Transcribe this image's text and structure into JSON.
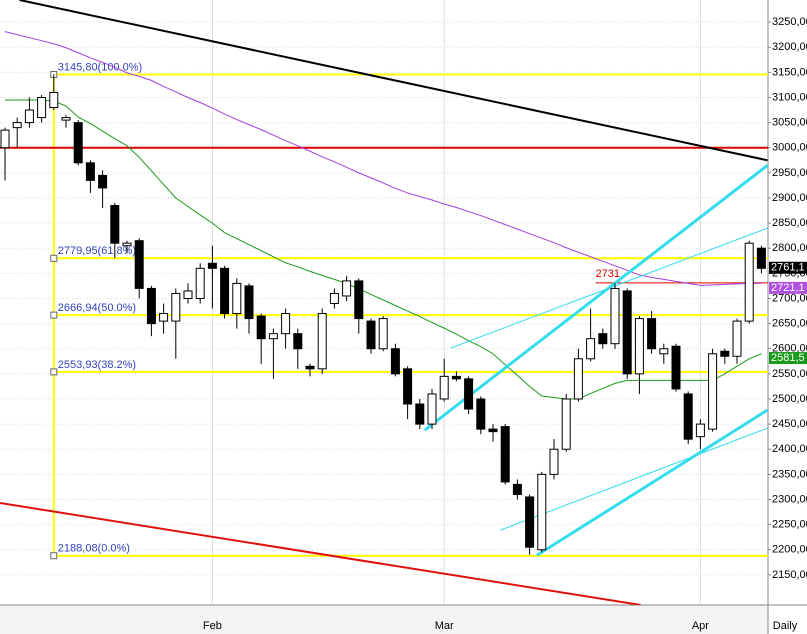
{
  "chart_data": {
    "type": "candlestick",
    "period": "Daily",
    "categories": [
      null,
      null,
      null,
      null,
      null,
      null,
      null,
      null,
      null,
      null,
      null,
      null,
      null,
      null,
      null,
      null,
      null,
      "Feb",
      null,
      null,
      null,
      null,
      null,
      null,
      null,
      null,
      null,
      null,
      null,
      null,
      null,
      null,
      null,
      null,
      null,
      null,
      "Mar",
      null,
      null,
      null,
      null,
      null,
      null,
      null,
      null,
      null,
      null,
      null,
      null,
      null,
      null,
      null,
      null,
      null,
      null,
      null,
      null,
      "Apr",
      null,
      null,
      null,
      null,
      null
    ],
    "open": [
      3000,
      3040,
      3050,
      3060,
      3080,
      3055,
      3050,
      2970,
      2945,
      2885,
      2805,
      2815,
      2720,
      2655,
      2655,
      2700,
      2700,
      2770,
      2760,
      2670,
      2725,
      2665,
      2620,
      2630,
      2630,
      2565,
      2560,
      2690,
      2705,
      2735,
      2655,
      2600,
      2600,
      2560,
      2490,
      2450,
      2500,
      2545,
      2540,
      2500,
      2440,
      2445,
      2330,
      2305,
      2200,
      2350,
      2400,
      2500,
      2580,
      2630,
      2610,
      2715,
      2550,
      2660,
      2590,
      2605,
      2510,
      2425,
      2440,
      2595,
      2585,
      2655,
      2800
    ],
    "high": [
      3040,
      3060,
      3100,
      3105,
      3146,
      3065,
      3055,
      2975,
      2955,
      2890,
      2815,
      2820,
      2725,
      2690,
      2720,
      2730,
      2770,
      2805,
      2765,
      2740,
      2730,
      2670,
      2640,
      2680,
      2640,
      2570,
      2680,
      2720,
      2745,
      2740,
      2660,
      2665,
      2610,
      2565,
      2500,
      2520,
      2580,
      2555,
      2545,
      2505,
      2450,
      2450,
      2340,
      2310,
      2355,
      2420,
      2510,
      2600,
      2680,
      2640,
      2730,
      2720,
      2665,
      2675,
      2610,
      2610,
      2515,
      2460,
      2600,
      2600,
      2660,
      2815,
      2805
    ],
    "low": [
      2935,
      3000,
      3040,
      3050,
      3075,
      3040,
      2965,
      2910,
      2880,
      2780,
      2790,
      2700,
      2625,
      2630,
      2580,
      2690,
      2690,
      2680,
      2660,
      2640,
      2630,
      2570,
      2540,
      2600,
      2560,
      2545,
      2550,
      2680,
      2695,
      2630,
      2590,
      2595,
      2545,
      2460,
      2440,
      2440,
      2495,
      2535,
      2470,
      2430,
      2415,
      2330,
      2300,
      2190,
      2195,
      2340,
      2395,
      2495,
      2575,
      2600,
      2600,
      2540,
      2510,
      2590,
      2570,
      2515,
      2410,
      2400,
      2435,
      2570,
      2570,
      2650,
      2750
    ],
    "close": [
      3035,
      3050,
      3075,
      3100,
      3110,
      3060,
      2970,
      2935,
      2920,
      2810,
      2810,
      2720,
      2650,
      2670,
      2710,
      2715,
      2760,
      2760,
      2670,
      2730,
      2660,
      2620,
      2630,
      2670,
      2600,
      2560,
      2670,
      2710,
      2735,
      2660,
      2600,
      2660,
      2550,
      2490,
      2450,
      2510,
      2545,
      2540,
      2480,
      2440,
      2435,
      2335,
      2310,
      2205,
      2350,
      2400,
      2500,
      2580,
      2620,
      2610,
      2720,
      2550,
      2660,
      2600,
      2600,
      2520,
      2420,
      2450,
      2590,
      2585,
      2655,
      2810,
      2760
    ],
    "overlays": [
      {
        "color": "#a040e0",
        "values": [
          3231,
          3225,
          3219,
          3213,
          3207,
          3199,
          3189,
          3179,
          3170,
          3160,
          3149,
          3142,
          3134,
          3122,
          3111,
          3100,
          3090,
          3079,
          3067,
          3056,
          3046,
          3036,
          3025,
          3014,
          3004,
          2993,
          2982,
          2972,
          2961,
          2950,
          2940,
          2930,
          2919,
          2910,
          2903,
          2896,
          2888,
          2881,
          2873,
          2865,
          2856,
          2847,
          2838,
          2829,
          2820,
          2811,
          2801,
          2792,
          2783,
          2774,
          2765,
          2756,
          2747,
          2742,
          2738,
          2734,
          2730,
          2726,
          2727,
          2728,
          2729,
          2730,
          2730
        ]
      },
      {
        "color": "#1a9a1a",
        "values": [
          3095,
          3095,
          3095,
          3095,
          3093,
          3083,
          3061,
          3048,
          3033,
          3018,
          3004,
          2981,
          2954,
          2927,
          2900,
          2883,
          2866,
          2850,
          2831,
          2819,
          2807,
          2795,
          2783,
          2771,
          2763,
          2754,
          2746,
          2738,
          2730,
          2719,
          2708,
          2697,
          2686,
          2675,
          2664,
          2652,
          2641,
          2629,
          2616,
          2604,
          2590,
          2568,
          2547,
          2525,
          2506,
          2503,
          2500,
          2500,
          2511,
          2521,
          2531,
          2537,
          2537,
          2537,
          2537,
          2537,
          2537,
          2537,
          2537,
          2550,
          2565,
          2580,
          2590
        ]
      }
    ],
    "trendlines": [
      {
        "color": "#000000",
        "width": 2,
        "points": [
          [
            1.2,
            3294
          ],
          [
            62.5,
            2975
          ]
        ]
      },
      {
        "color": "#e01010",
        "width": 2,
        "points": [
          [
            -0.4,
            2293
          ],
          [
            52.1,
            2090
          ]
        ]
      },
      {
        "color": "#33ddee",
        "width": 3,
        "points": [
          [
            34.4,
            2438
          ],
          [
            62.5,
            2965
          ]
        ]
      },
      {
        "color": "#33ddee",
        "width": 1,
        "points": [
          [
            36.5,
            2601
          ],
          [
            62.5,
            2840
          ]
        ]
      },
      {
        "color": "#33ddee",
        "width": 3,
        "points": [
          [
            43.6,
            2189
          ],
          [
            62.5,
            2478
          ]
        ]
      },
      {
        "color": "#33ddee",
        "width": 1,
        "points": [
          [
            40.6,
            2239
          ],
          [
            62.5,
            2442
          ]
        ]
      }
    ],
    "levels": [
      {
        "value": 3000,
        "color": "#e00000",
        "width": 2,
        "start": -1
      },
      {
        "value": 2731,
        "color": "#e00000",
        "width": 1,
        "start": 48.4
      }
    ],
    "fib_start": 4,
    "fib_color": "#ffff00",
    "fib_levels": [
      {
        "value": 3145.8,
        "label": "3145,80(100.0%)"
      },
      {
        "value": 2779.95,
        "label": "2779,95(61.8%)"
      },
      {
        "value": 2666.94,
        "label": "2666,94(50.0%)"
      },
      {
        "value": 2553.93,
        "label": "2553,93(38.2%)"
      },
      {
        "value": 2188.08,
        "label": "2188,08(0.0%)"
      }
    ],
    "price_labels": [
      {
        "value": 2761.1,
        "label": "2761,1",
        "color": "#000000"
      },
      {
        "value": 2721.1,
        "label": "2721,1",
        "color": "#b050e0"
      },
      {
        "value": 2581.5,
        "label": "2581,5",
        "color": "#1a9a1a"
      }
    ],
    "ylim": [
      2090,
      3294
    ],
    "yticks": [
      {
        "value": 2150,
        "label": "2150,00"
      },
      {
        "value": 2200,
        "label": "2200,00"
      },
      {
        "value": 2250,
        "label": "2250,00"
      },
      {
        "value": 2300,
        "label": "2300,00"
      },
      {
        "value": 2350,
        "label": "2350,00"
      },
      {
        "value": 2400,
        "label": "2400,00"
      },
      {
        "value": 2450,
        "label": "2450,00"
      },
      {
        "value": 2500,
        "label": "2500,00"
      },
      {
        "value": 2550,
        "label": "2550,00"
      },
      {
        "value": 2600,
        "label": "2600,00"
      },
      {
        "value": 2650,
        "label": "2650,00"
      },
      {
        "value": 2700,
        "label": "2700,00"
      },
      {
        "value": 2750,
        "label": "2750,00"
      },
      {
        "value": 2800,
        "label": "2800,00"
      },
      {
        "value": 2850,
        "label": "2850,00"
      },
      {
        "value": 2900,
        "label": "2900,00"
      },
      {
        "value": 2950,
        "label": "2950,00"
      },
      {
        "value": 3000,
        "label": "3000,00"
      },
      {
        "value": 3050,
        "label": "3050,00"
      },
      {
        "value": 3100,
        "label": "3100,00"
      },
      {
        "value": 3150,
        "label": "3150,00"
      },
      {
        "value": 3200,
        "label": "3200,00"
      },
      {
        "value": 3250,
        "label": "3250,00"
      }
    ],
    "grid": true
  }
}
